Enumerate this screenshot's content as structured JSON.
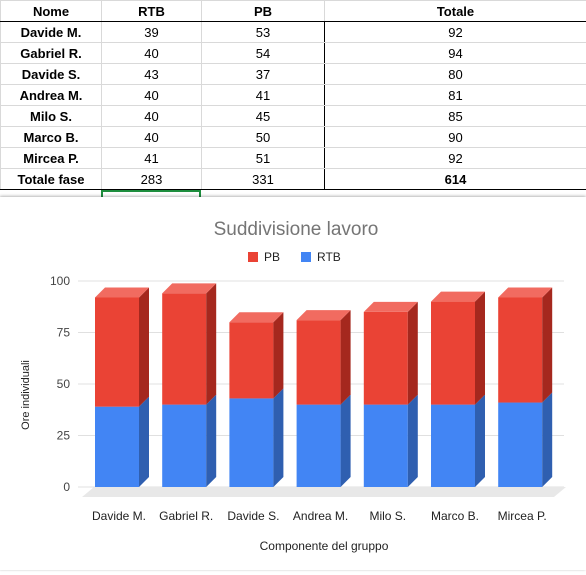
{
  "table": {
    "headers": [
      "Nome",
      "RTB",
      "PB",
      "Totale"
    ],
    "rows": [
      {
        "name": "Davide M.",
        "rtb": "39",
        "pb": "53",
        "total": "92"
      },
      {
        "name": "Gabriel R.",
        "rtb": "40",
        "pb": "54",
        "total": "94"
      },
      {
        "name": "Davide S.",
        "rtb": "43",
        "pb": "37",
        "total": "80"
      },
      {
        "name": "Andrea M.",
        "rtb": "40",
        "pb": "41",
        "total": "81"
      },
      {
        "name": "Milo S.",
        "rtb": "40",
        "pb": "45",
        "total": "85"
      },
      {
        "name": "Marco B.",
        "rtb": "40",
        "pb": "50",
        "total": "90"
      },
      {
        "name": "Mircea P.",
        "rtb": "41",
        "pb": "51",
        "total": "92"
      }
    ],
    "footer": {
      "label": "Totale fase",
      "rtb": "283",
      "pb": "331",
      "total": "614"
    }
  },
  "chart_data": {
    "type": "bar",
    "stacked": true,
    "three_d": true,
    "title": "Suddivisione lavoro",
    "xlabel": "Componente del gruppo",
    "ylabel": "Ore individuali",
    "categories": [
      "Davide M.",
      "Gabriel R.",
      "Davide S.",
      "Andrea M.",
      "Milo S.",
      "Marco B.",
      "Mircea P."
    ],
    "series": [
      {
        "name": "RTB",
        "values": [
          39,
          40,
          43,
          40,
          40,
          40,
          41
        ],
        "color": "#4285f4",
        "side_color": "#2f5fb0"
      },
      {
        "name": "PB",
        "values": [
          53,
          54,
          37,
          41,
          45,
          50,
          51
        ],
        "color": "#ea4335",
        "top_color": "#f16b60",
        "side_color": "#a5281e"
      }
    ],
    "ylim": [
      0,
      100
    ],
    "yticks": [
      "0",
      "25",
      "50",
      "75",
      "100"
    ],
    "legend": "top-center",
    "grid": true
  }
}
